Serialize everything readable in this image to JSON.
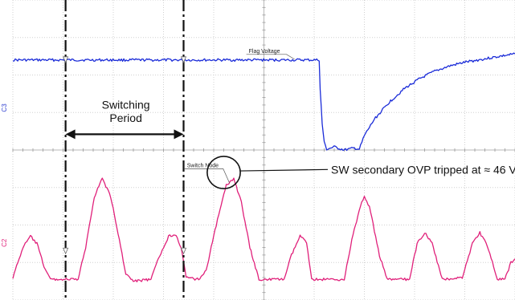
{
  "chart_data": {
    "type": "line",
    "title": "",
    "xlabel": "",
    "ylabel": "",
    "grid": true,
    "grid_divisions": {
      "x": 10,
      "y": 8
    },
    "x_unit": "div",
    "y_unit": "div",
    "xlim": [
      0,
      10
    ],
    "ylim": [
      -4,
      4
    ],
    "channel_markers": [
      {
        "label": "C3",
        "color": "#2f3fd0",
        "level": 1.1
      },
      {
        "label": "C2",
        "color": "#e0207a",
        "level": -2.5
      }
    ],
    "series": [
      {
        "name": "Flag Voltage",
        "color": "#1a2bd8",
        "points": [
          [
            0,
            2.4
          ],
          [
            6.1,
            2.4
          ],
          [
            6.12,
            1.6
          ],
          [
            6.16,
            0.7
          ],
          [
            6.2,
            0.2
          ],
          [
            6.25,
            0.02
          ],
          [
            6.4,
            0.08
          ],
          [
            6.6,
            0.0
          ],
          [
            6.8,
            0.05
          ],
          [
            6.9,
            0.02
          ],
          [
            7.0,
            0.38
          ],
          [
            7.2,
            0.82
          ],
          [
            7.5,
            1.28
          ],
          [
            7.8,
            1.64
          ],
          [
            8.1,
            1.9
          ],
          [
            8.4,
            2.1
          ],
          [
            8.7,
            2.24
          ],
          [
            9.0,
            2.34
          ],
          [
            9.4,
            2.43
          ],
          [
            9.7,
            2.5
          ],
          [
            10,
            2.56
          ]
        ]
      },
      {
        "name": "Switch Node",
        "color": "#e0207a",
        "points": [
          [
            0,
            -3.4
          ],
          [
            0.2,
            -2.6
          ],
          [
            0.35,
            -2.3
          ],
          [
            0.48,
            -2.5
          ],
          [
            0.62,
            -3.1
          ],
          [
            0.75,
            -3.45
          ],
          [
            1.3,
            -3.45
          ],
          [
            1.45,
            -2.6
          ],
          [
            1.62,
            -1.25
          ],
          [
            1.78,
            -0.75
          ],
          [
            1.95,
            -1.25
          ],
          [
            2.12,
            -2.4
          ],
          [
            2.25,
            -3.3
          ],
          [
            2.4,
            -3.5
          ],
          [
            2.75,
            -3.45
          ],
          [
            2.9,
            -2.9
          ],
          [
            3.1,
            -2.3
          ],
          [
            3.25,
            -2.25
          ],
          [
            3.35,
            -2.6
          ],
          [
            3.45,
            -3.4
          ],
          [
            3.7,
            -3.45
          ],
          [
            3.85,
            -3.2
          ],
          [
            4.05,
            -2.0
          ],
          [
            4.25,
            -0.95
          ],
          [
            4.4,
            -0.75
          ],
          [
            4.55,
            -1.4
          ],
          [
            4.72,
            -2.6
          ],
          [
            4.9,
            -3.45
          ],
          [
            5.4,
            -3.45
          ],
          [
            5.55,
            -2.8
          ],
          [
            5.72,
            -2.3
          ],
          [
            5.85,
            -2.45
          ],
          [
            5.95,
            -3.45
          ],
          [
            6.6,
            -3.45
          ],
          [
            6.75,
            -2.4
          ],
          [
            6.92,
            -1.5
          ],
          [
            7.0,
            -1.25
          ],
          [
            7.1,
            -1.5
          ],
          [
            7.3,
            -2.8
          ],
          [
            7.45,
            -3.45
          ],
          [
            7.9,
            -3.45
          ],
          [
            8.05,
            -2.5
          ],
          [
            8.2,
            -2.2
          ],
          [
            8.35,
            -2.5
          ],
          [
            8.55,
            -3.45
          ],
          [
            8.95,
            -3.4
          ],
          [
            9.15,
            -2.5
          ],
          [
            9.3,
            -2.2
          ],
          [
            9.45,
            -2.55
          ],
          [
            9.65,
            -3.45
          ],
          [
            9.8,
            -3.45
          ],
          [
            9.92,
            -3.0
          ],
          [
            10,
            -2.9
          ]
        ]
      }
    ],
    "cursors": [
      {
        "x": 1.05
      },
      {
        "x": 3.4
      }
    ],
    "annotations": [
      {
        "text": "Flag Voltage",
        "x": 4.65,
        "y": 2.55
      },
      {
        "text": "Switch Node",
        "x": 3.42,
        "y": -0.5
      },
      {
        "text": "Switching",
        "x": 2.25,
        "y": 1.1,
        "line2": "Period",
        "y2": 0.75
      },
      {
        "text": "SW secondary OVP tripped at ≈ 46 V",
        "x": 6.4,
        "y": -0.52
      }
    ],
    "period_arrow": {
      "x_from": 1.05,
      "x_to": 3.4,
      "y": 0.42
    },
    "ovp_circle": {
      "cx": 4.2,
      "cy": -0.6,
      "rx": 0.33,
      "ry": 0.43
    }
  }
}
